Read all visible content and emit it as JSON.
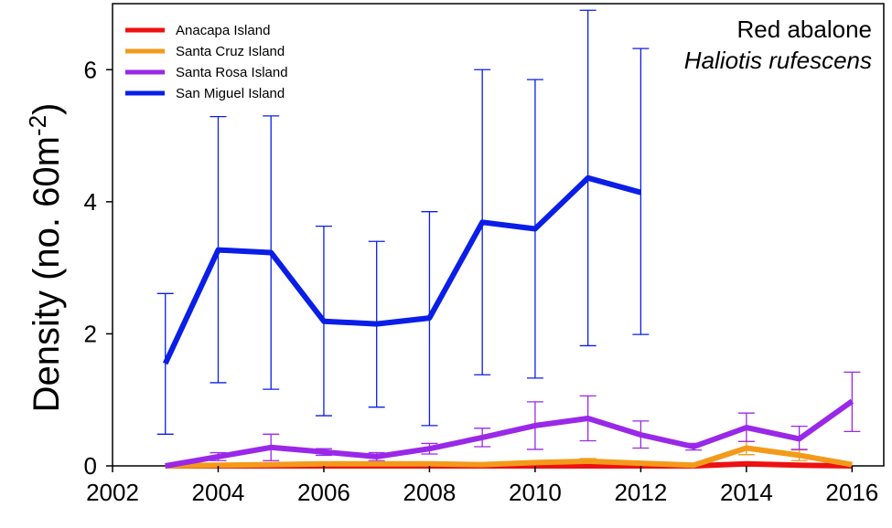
{
  "chart_data": {
    "type": "line",
    "title": "Red abalone",
    "subtitle": "Haliotis rufescens",
    "xlabel": "",
    "ylabel": "Density (no. 60m",
    "ylabel_sup": "-2",
    "ylabel_close": ")",
    "xlim": [
      2002,
      2016.6
    ],
    "ylim": [
      0,
      7
    ],
    "xticks": [
      2002,
      2004,
      2006,
      2008,
      2010,
      2012,
      2014,
      2016
    ],
    "xtick_labels": [
      "2002",
      "2004",
      "2006",
      "2008",
      "2010",
      "2012",
      "2014",
      "2016"
    ],
    "yticks": [
      0,
      2,
      4,
      6
    ],
    "ytick_labels": [
      "0",
      "2",
      "4",
      "6"
    ],
    "legend_position": "top-left",
    "grid": false,
    "series": [
      {
        "name": "Anacapa Island",
        "color": "#ee1111",
        "x": [
          2003,
          2004,
          2005,
          2006,
          2007,
          2008,
          2009,
          2010,
          2011,
          2012,
          2013,
          2014,
          2015,
          2016
        ],
        "y": [
          0,
          0,
          0,
          0,
          0,
          0,
          0,
          0,
          0,
          0,
          0,
          0.03,
          0.01,
          0
        ],
        "err_low": [],
        "err_high": []
      },
      {
        "name": "Santa Cruz Island",
        "color": "#f39a1b",
        "x": [
          2003,
          2004,
          2005,
          2006,
          2007,
          2008,
          2009,
          2010,
          2011,
          2012,
          2013,
          2014,
          2015,
          2016
        ],
        "y": [
          0,
          0.01,
          0.02,
          0.03,
          0.03,
          0.03,
          0.02,
          0.05,
          0.07,
          0.04,
          0.01,
          0.27,
          0.16,
          0.02
        ],
        "err_low": [
          0,
          0,
          0,
          0,
          0,
          0,
          0,
          0,
          0.03,
          0,
          0,
          0.17,
          0.08,
          0
        ],
        "err_high": [
          0,
          0,
          0,
          0,
          0,
          0,
          0,
          0,
          0.11,
          0,
          0,
          0.37,
          0.24,
          0
        ]
      },
      {
        "name": "Santa Rosa Island",
        "color": "#9a28e8",
        "x": [
          2003,
          2004,
          2005,
          2006,
          2007,
          2008,
          2009,
          2010,
          2011,
          2012,
          2013,
          2014,
          2015,
          2016
        ],
        "y": [
          0,
          0.14,
          0.28,
          0.21,
          0.14,
          0.26,
          0.43,
          0.61,
          0.72,
          0.47,
          0.29,
          0.58,
          0.41,
          0.98
        ],
        "err_low": [
          0,
          0.08,
          0.08,
          0.16,
          0.08,
          0.18,
          0.29,
          0.25,
          0.38,
          0.27,
          0.24,
          0.37,
          0.25,
          0.52
        ],
        "err_high": [
          0,
          0.2,
          0.48,
          0.26,
          0.2,
          0.34,
          0.57,
          0.97,
          1.06,
          0.68,
          0.34,
          0.8,
          0.6,
          1.42
        ]
      },
      {
        "name": "San Miguel Island",
        "color": "#0a1ee8",
        "x": [
          2003,
          2004,
          2005,
          2006,
          2007,
          2008,
          2009,
          2010,
          2011,
          2012
        ],
        "y": [
          1.55,
          3.27,
          3.23,
          2.19,
          2.15,
          2.24,
          3.69,
          3.59,
          4.36,
          4.14
        ],
        "err_low": [
          0.48,
          1.26,
          1.16,
          0.76,
          0.89,
          0.61,
          1.38,
          1.33,
          1.82,
          1.99
        ],
        "err_high": [
          2.61,
          5.29,
          5.3,
          3.63,
          3.4,
          3.85,
          6.0,
          5.85,
          6.9,
          6.32
        ]
      }
    ]
  }
}
